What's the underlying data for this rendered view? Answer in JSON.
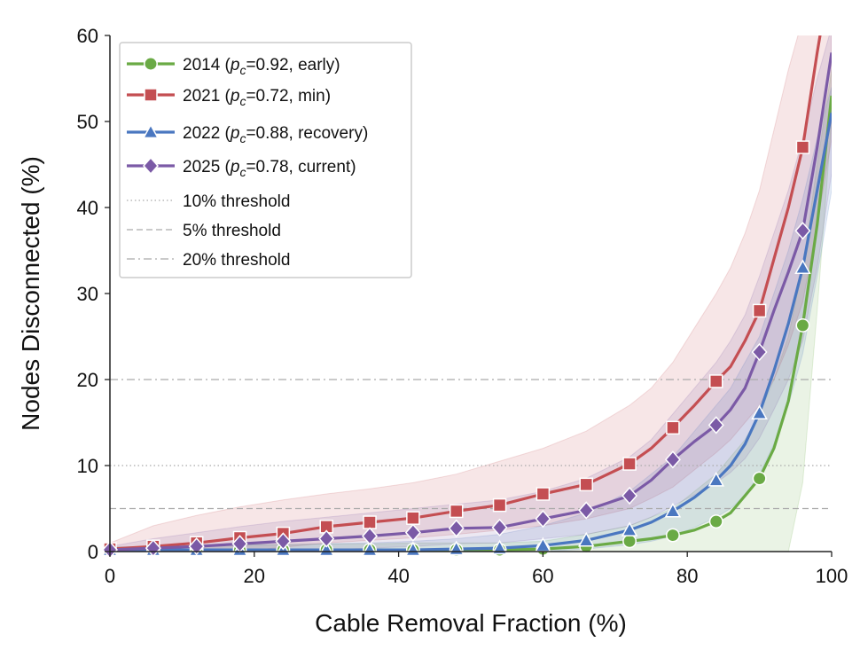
{
  "chart_data": {
    "type": "line",
    "title": "",
    "xlabel": "Cable Removal Fraction (%)",
    "ylabel": "Nodes Disconnected (%)",
    "xlim": [
      0,
      100
    ],
    "ylim": [
      0,
      60
    ],
    "xticks": [
      0,
      20,
      40,
      60,
      80,
      100
    ],
    "yticks": [
      0,
      10,
      20,
      30,
      40,
      50,
      60
    ],
    "grid": false,
    "legend_position": "upper-left",
    "series": [
      {
        "name_year": "2014",
        "name_pc": "0.92",
        "name_tag": "early",
        "color": "#6aaa45",
        "marker": "circle",
        "x": [
          0,
          6,
          12,
          18,
          24,
          30,
          36,
          42,
          48,
          54,
          60,
          66,
          72,
          75,
          78,
          81,
          84,
          86,
          88,
          90,
          92,
          94,
          96,
          98,
          100
        ],
        "y": [
          0.2,
          0.2,
          0.2,
          0.2,
          0.2,
          0.2,
          0.2,
          0.2,
          0.2,
          0.2,
          0.3,
          0.6,
          1.2,
          1.5,
          1.9,
          2.5,
          3.5,
          4.5,
          6.5,
          8.5,
          12,
          17.5,
          26.3,
          38,
          53
        ],
        "markers_x": [
          0,
          6,
          12,
          18,
          24,
          30,
          36,
          42,
          48,
          54,
          60,
          66,
          72,
          78,
          84,
          90,
          96
        ],
        "band_lower": [
          0,
          0,
          0,
          0,
          0,
          0,
          0,
          0,
          0,
          0,
          0,
          0,
          0,
          0,
          0,
          0,
          0,
          0,
          0,
          0,
          0,
          0,
          8,
          28,
          50
        ],
        "band_upper": [
          0.5,
          0.6,
          0.7,
          0.8,
          0.8,
          0.9,
          0.9,
          1,
          1,
          1,
          1.2,
          2,
          3,
          4,
          5,
          7,
          9,
          11,
          13,
          16,
          20,
          25,
          33,
          45,
          56
        ]
      },
      {
        "name_year": "2021",
        "name_pc": "0.72",
        "name_tag": "min",
        "color": "#c44e52",
        "marker": "square",
        "x": [
          0,
          6,
          12,
          18,
          24,
          30,
          36,
          42,
          48,
          54,
          60,
          66,
          72,
          75,
          78,
          81,
          84,
          86,
          88,
          90,
          92,
          94,
          96,
          98,
          100
        ],
        "y": [
          0.3,
          0.6,
          1,
          1.6,
          2.1,
          2.9,
          3.4,
          3.9,
          4.7,
          5.4,
          6.7,
          7.8,
          10.2,
          12,
          14.4,
          17,
          19.8,
          21.5,
          24.5,
          28,
          34,
          40,
          47,
          58,
          68
        ],
        "markers_x": [
          0,
          6,
          12,
          18,
          24,
          30,
          36,
          42,
          48,
          54,
          60,
          66,
          72,
          78,
          84,
          90,
          96
        ],
        "band_lower": [
          0,
          0,
          0,
          0,
          0.5,
          1,
          1.3,
          1.6,
          2,
          2.5,
          3,
          3.8,
          5,
          6.2,
          7.5,
          9.5,
          11.5,
          13,
          15,
          17,
          20,
          24,
          29,
          38,
          48
        ],
        "band_upper": [
          1,
          3,
          4.2,
          5.2,
          6,
          6.7,
          7.3,
          8,
          9,
          10.5,
          12,
          14,
          17,
          19,
          22,
          26,
          30,
          33,
          37,
          42,
          49,
          56,
          62,
          66,
          68
        ]
      },
      {
        "name_year": "2022",
        "name_pc": "0.88",
        "name_tag": "recovery",
        "color": "#4a77c0",
        "marker": "triangle",
        "x": [
          0,
          6,
          12,
          18,
          24,
          30,
          36,
          42,
          48,
          54,
          60,
          66,
          72,
          75,
          78,
          81,
          84,
          86,
          88,
          90,
          92,
          94,
          96,
          98,
          100
        ],
        "y": [
          0.2,
          0.2,
          0.2,
          0.2,
          0.2,
          0.2,
          0.2,
          0.2,
          0.3,
          0.4,
          0.7,
          1.3,
          2.5,
          3.4,
          4.7,
          6.3,
          8.3,
          10,
          12.5,
          16.1,
          21,
          26.5,
          33,
          42,
          51
        ],
        "markers_x": [
          0,
          6,
          12,
          18,
          24,
          30,
          36,
          42,
          48,
          54,
          60,
          66,
          72,
          78,
          84,
          90,
          96
        ],
        "band_lower": [
          0,
          0,
          0,
          0,
          0,
          0,
          0,
          0,
          0,
          0,
          0,
          0.3,
          0.8,
          1.2,
          1.8,
          2.8,
          4,
          5,
          6.5,
          9,
          12.5,
          17,
          23,
          32,
          42
        ],
        "band_upper": [
          0.5,
          0.6,
          0.7,
          0.8,
          0.8,
          0.9,
          1,
          1.2,
          1.5,
          2,
          3,
          4.5,
          7,
          9,
          11,
          14,
          17,
          19,
          22,
          25,
          30,
          35,
          41,
          48,
          54
        ]
      },
      {
        "name_year": "2025",
        "name_pc": "0.78",
        "name_tag": "current",
        "color": "#7b5aa6",
        "marker": "diamond",
        "x": [
          0,
          6,
          12,
          18,
          24,
          30,
          36,
          42,
          48,
          54,
          60,
          66,
          72,
          75,
          78,
          81,
          84,
          86,
          88,
          90,
          92,
          94,
          96,
          98,
          100
        ],
        "y": [
          0.2,
          0.4,
          0.6,
          0.9,
          1.2,
          1.5,
          1.8,
          2.2,
          2.7,
          2.8,
          3.8,
          4.8,
          6.5,
          8.3,
          10.7,
          12.8,
          14.7,
          16.5,
          19,
          23.2,
          28,
          32.5,
          37.3,
          47,
          58
        ],
        "markers_x": [
          0,
          6,
          12,
          18,
          24,
          30,
          36,
          42,
          48,
          54,
          60,
          66,
          72,
          78,
          84,
          90,
          96
        ],
        "band_lower": [
          0,
          0,
          0,
          0,
          0,
          0.2,
          0.4,
          0.6,
          0.9,
          1,
          1.5,
          2,
          3,
          4,
          5.3,
          6.6,
          8,
          9.2,
          10.8,
          13.2,
          16.5,
          20,
          24.5,
          33,
          44
        ],
        "band_upper": [
          0.6,
          1.5,
          2.2,
          2.9,
          3.5,
          4,
          4.5,
          5,
          5.5,
          6,
          7,
          8.5,
          11,
          13,
          16,
          19,
          22,
          24.5,
          27.5,
          32,
          37,
          42,
          48,
          55,
          61
        ]
      }
    ],
    "thresholds": [
      {
        "label": "10% threshold",
        "value": 10,
        "style": "dotted"
      },
      {
        "label": "5% threshold",
        "value": 5,
        "style": "dashed"
      },
      {
        "label": "20% threshold",
        "value": 20,
        "style": "dashdot"
      }
    ]
  }
}
